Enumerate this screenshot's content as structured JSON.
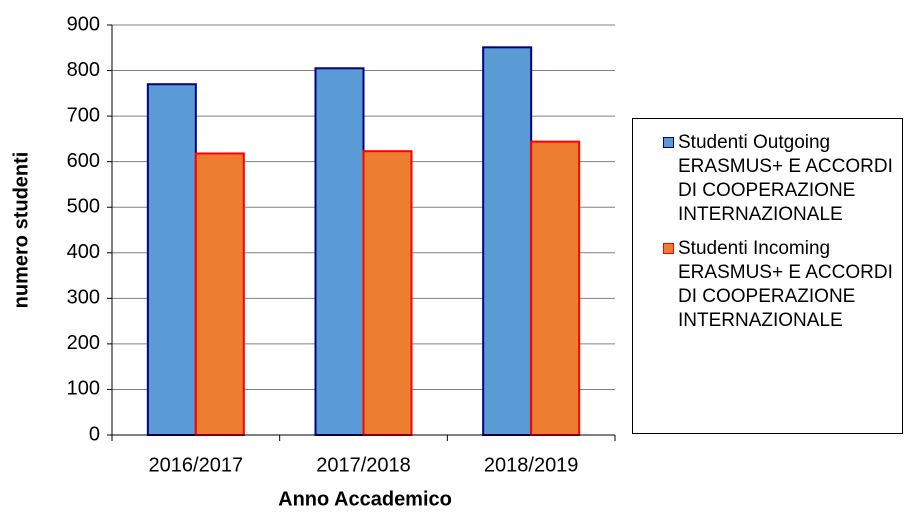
{
  "chart_data": {
    "type": "bar",
    "x_label": "Anno Accademico",
    "y_label": "numero studenti",
    "categories": [
      "2016/2017",
      "2017/2018",
      "2018/2019"
    ],
    "series": [
      {
        "name": "Studenti Outgoing ERASMUS+ E ACCORDI DI COOPERAZIONE INTERNAZIONALE",
        "color": "#5b9bd5",
        "edge": "#000080",
        "values": [
          770,
          805,
          851
        ]
      },
      {
        "name": "Studenti Incoming ERASMUS+ E ACCORDI DI COOPERAZIONE INTERNAZIONALE",
        "color": "#ed7d31",
        "edge": "#ff0000",
        "values": [
          618,
          623,
          644
        ]
      }
    ],
    "ylim": [
      0,
      900
    ],
    "yticks": [
      0,
      100,
      200,
      300,
      400,
      500,
      600,
      700,
      800,
      900
    ],
    "grid": true
  }
}
